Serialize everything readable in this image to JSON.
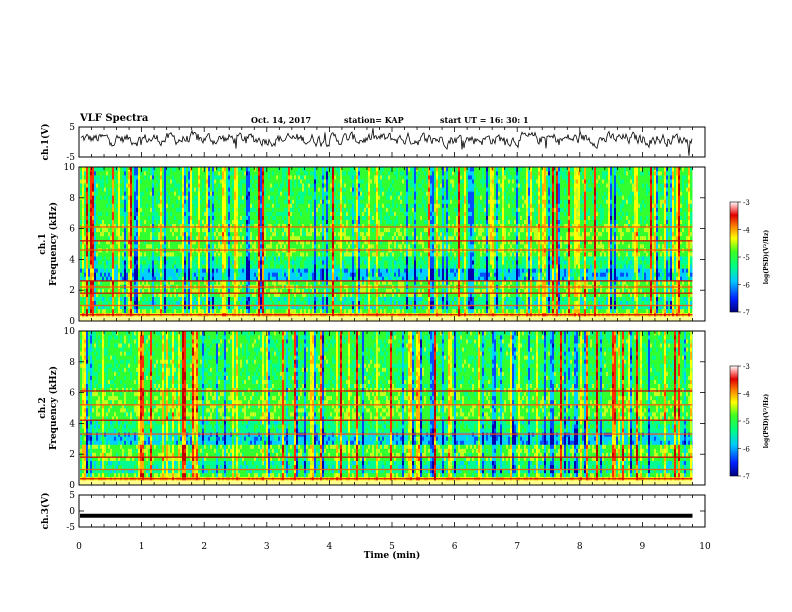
{
  "header": {
    "title": "VLF Spectra",
    "date": "Oct. 14, 2017",
    "station": "station= KAP",
    "start_ut": "start  UT =   16: 30: 1"
  },
  "colors": {
    "waveform": "#000000",
    "colormap": [
      "#0000b0",
      "#0050ff",
      "#00d0ff",
      "#00ff90",
      "#30ff30",
      "#c0ff20",
      "#ffff00",
      "#ffb000",
      "#ff3000",
      "#c00000",
      "#ffffff"
    ]
  },
  "chart_data": [
    {
      "type": "line",
      "panel": "top",
      "ylabel": "ch.1(V)",
      "ylim": [
        -5,
        5
      ],
      "yticks": [
        "5",
        "-5"
      ],
      "xlim": [
        0,
        10
      ],
      "series": [
        {
          "values": "noisy waveform around 0 V over 0–9.8 min"
        }
      ]
    },
    {
      "type": "heatmap",
      "panel": "ch1",
      "ylabel": "ch.1 Frequency (kHz)",
      "ylim": [
        0,
        10
      ],
      "yticks": [
        "0",
        "2",
        "4",
        "6",
        "8",
        "10"
      ],
      "xlim": [
        0,
        10
      ],
      "colorbar": {
        "label": "log(PSD)(V²/Hz)",
        "range": [
          -7,
          -3
        ],
        "ticks": [
          "-3",
          "-4",
          "-5",
          "-6",
          "-7"
        ]
      },
      "bands_khz": [
        0.4,
        1.0,
        1.8,
        2.2,
        2.6,
        4.6,
        5.2,
        6.1
      ]
    },
    {
      "type": "heatmap",
      "panel": "ch2",
      "ylabel": "ch.2 Frequency (kHz)",
      "ylim": [
        0,
        10
      ],
      "yticks": [
        "0",
        "2",
        "4",
        "6",
        "8",
        "10"
      ],
      "xlim": [
        0,
        10
      ],
      "colorbar": {
        "label": "log(PSD)(V²/Hz)",
        "range": [
          -7,
          -3
        ],
        "ticks": [
          "-3",
          "-4",
          "-5",
          "-6",
          "-7"
        ]
      },
      "bands_khz": [
        0.4,
        1.0,
        1.8,
        3.3,
        4.2,
        5.2,
        6.1
      ]
    },
    {
      "type": "line",
      "panel": "bottom",
      "ylabel": "ch.3(V)",
      "ylim": [
        -5,
        5
      ],
      "yticks": [
        "5",
        "0",
        "-5"
      ],
      "xlim": [
        0,
        10
      ],
      "series": [
        {
          "values": [
            -1.5,
            -1.5
          ]
        }
      ]
    }
  ],
  "xaxis": {
    "label": "Time  (min)",
    "ticks": [
      "0",
      "1",
      "2",
      "3",
      "4",
      "5",
      "6",
      "7",
      "8",
      "9",
      "10"
    ]
  }
}
